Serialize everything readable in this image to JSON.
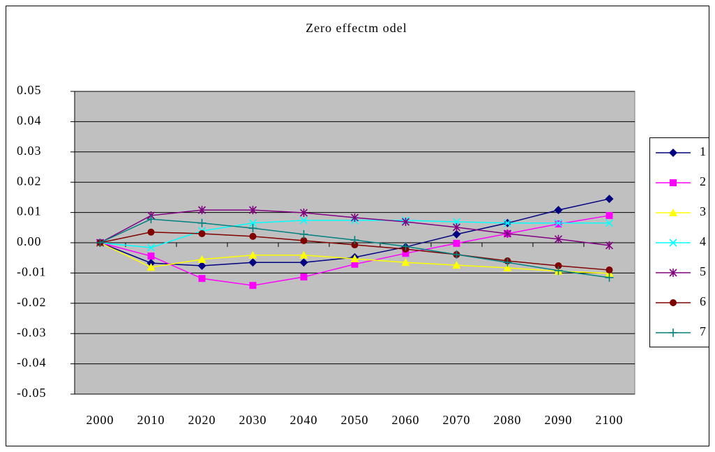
{
  "chart_data": {
    "type": "line",
    "title": "Zero effectm odel",
    "categories": [
      "2000",
      "2010",
      "2020",
      "2030",
      "2040",
      "2050",
      "2060",
      "2070",
      "2080",
      "2090",
      "2100"
    ],
    "ylim": [
      -0.05,
      0.05
    ],
    "yticks": [
      0.05,
      0.04,
      0.03,
      0.02,
      0.01,
      {
        "value": 0,
        "label": "0.00"
      },
      -0.01,
      -0.02,
      -0.03,
      -0.04,
      -0.05
    ],
    "grid": true,
    "legend": "right",
    "plot_color": "#c0c0c0",
    "series": [
      {
        "name": "1",
        "color": "#000080",
        "marker": "diamond",
        "values": [
          0,
          -0.0067,
          -0.0076,
          -0.0065,
          -0.0065,
          -0.0048,
          -0.0014,
          0.0028,
          0.0065,
          0.0108,
          0.0145
        ]
      },
      {
        "name": "2",
        "color": "#ff00ff",
        "marker": "square",
        "values": [
          0,
          -0.0044,
          -0.0118,
          -0.0141,
          -0.0113,
          -0.0071,
          -0.0035,
          -0.0002,
          0.003,
          0.0062,
          0.009
        ]
      },
      {
        "name": "3",
        "color": "#ffff00",
        "marker": "triangle",
        "values": [
          0,
          -0.0081,
          -0.0055,
          -0.0041,
          -0.0041,
          -0.0053,
          -0.0065,
          -0.0074,
          -0.0083,
          -0.0094,
          -0.0101
        ]
      },
      {
        "name": "4",
        "color": "#00ffff",
        "marker": "x",
        "values": [
          0,
          -0.0016,
          0.0039,
          0.0065,
          0.0074,
          0.0074,
          0.0074,
          0.0069,
          0.0065,
          0.0065,
          0.0065
        ]
      },
      {
        "name": "5",
        "color": "#800080",
        "marker": "star",
        "values": [
          0,
          0.009,
          0.0108,
          0.0108,
          0.0099,
          0.0083,
          0.0069,
          0.0051,
          0.003,
          0.0012,
          -0.0009
        ]
      },
      {
        "name": "6",
        "color": "#800000",
        "marker": "circle",
        "values": [
          0,
          0.0035,
          0.003,
          0.0021,
          0.0007,
          -0.0007,
          -0.0021,
          -0.0039,
          -0.006,
          -0.0076,
          -0.009
        ]
      },
      {
        "name": "7",
        "color": "#008080",
        "marker": "plus",
        "values": [
          0,
          0.0078,
          0.0065,
          0.0048,
          0.0028,
          0.0009,
          -0.0012,
          -0.0039,
          -0.0065,
          -0.0092,
          -0.0115
        ]
      }
    ]
  }
}
